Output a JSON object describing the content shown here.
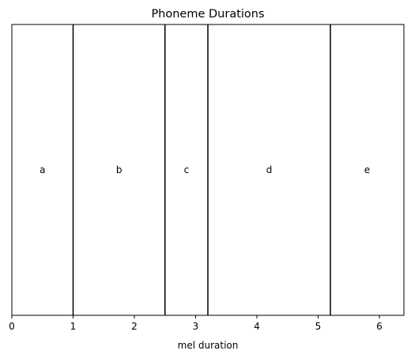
{
  "chart_data": {
    "type": "bar",
    "title": "Phoneme Durations",
    "xlabel": "mel duration",
    "ylabel": "",
    "xlim": [
      0,
      6.4
    ],
    "xticks": [
      0,
      1,
      2,
      3,
      4,
      5,
      6
    ],
    "grid": false,
    "boundaries": [
      1,
      2.5,
      3.2,
      5.2
    ],
    "segments": [
      {
        "label": "a",
        "center": 0.5
      },
      {
        "label": "b",
        "center": 1.75
      },
      {
        "label": "c",
        "center": 2.85
      },
      {
        "label": "d",
        "center": 4.2
      },
      {
        "label": "e",
        "center": 5.8
      }
    ]
  }
}
